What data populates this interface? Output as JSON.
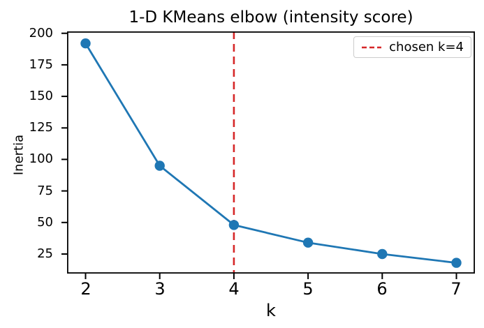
{
  "figure": {
    "background": "#ffffff",
    "spine_color": "#000000",
    "text_color": "#000000"
  },
  "chart_data": {
    "type": "line",
    "title": "1-D KMeans elbow (intensity score)",
    "xlabel": "k",
    "ylabel": "Inertia",
    "x": [
      2,
      3,
      4,
      5,
      6,
      7
    ],
    "series": [
      {
        "name": "inertia",
        "values": [
          192,
          95,
          48,
          34,
          25,
          18
        ],
        "color": "#1f77b4",
        "marker": "circle",
        "line_style": "solid"
      }
    ],
    "vline": {
      "x": 4,
      "color": "#d62728",
      "line_style": "dashed"
    },
    "xticks": [
      2,
      3,
      4,
      5,
      6,
      7
    ],
    "yticks": [
      25,
      50,
      75,
      100,
      125,
      150,
      175,
      200
    ],
    "xlim": [
      1.75,
      7.25
    ],
    "ylim": [
      9.5,
      201.5
    ],
    "grid": false,
    "legend": {
      "position": "upper right",
      "entries": [
        {
          "label": "chosen k=4",
          "color": "#d62728",
          "line_style": "dashed"
        }
      ]
    }
  }
}
